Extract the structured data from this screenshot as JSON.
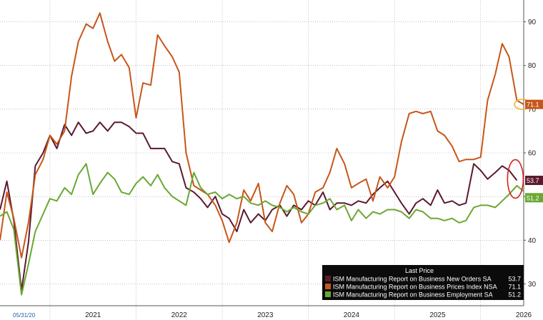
{
  "chart_data": {
    "type": "line",
    "corner_label": "05/31/20",
    "x_ticks": [
      "2021",
      "2022",
      "2023",
      "2024",
      "2025",
      "2026"
    ],
    "y_ticks": [
      30,
      40,
      50,
      60,
      70,
      80,
      90
    ],
    "ylim": [
      25,
      95
    ],
    "xlim": [
      2020.42,
      2026.5
    ],
    "grid": true,
    "legend": {
      "title": "Last Price",
      "placement": "bottom-right"
    },
    "series": [
      {
        "name": "ISM Manufacturing Report on Business New Orders SA",
        "color": "#5c1a2e",
        "last": "53.7",
        "points": [
          [
            2020.42,
            47.0
          ],
          [
            2020.5,
            53.5
          ],
          [
            2020.58,
            44.5
          ],
          [
            2020.67,
            28.5
          ],
          [
            2020.75,
            39.5
          ],
          [
            2020.83,
            57.0
          ],
          [
            2020.92,
            60.0
          ],
          [
            2021.0,
            64.0
          ],
          [
            2021.08,
            61.0
          ],
          [
            2021.17,
            66.5
          ],
          [
            2021.25,
            64.0
          ],
          [
            2021.33,
            67.0
          ],
          [
            2021.42,
            64.5
          ],
          [
            2021.5,
            65.0
          ],
          [
            2021.58,
            67.0
          ],
          [
            2021.67,
            65.0
          ],
          [
            2021.75,
            67.0
          ],
          [
            2021.83,
            67.0
          ],
          [
            2021.92,
            66.0
          ],
          [
            2022.0,
            64.5
          ],
          [
            2022.08,
            64.5
          ],
          [
            2022.17,
            61.0
          ],
          [
            2022.25,
            61.0
          ],
          [
            2022.33,
            61.0
          ],
          [
            2022.42,
            58.0
          ],
          [
            2022.5,
            57.5
          ],
          [
            2022.58,
            52.0
          ],
          [
            2022.67,
            51.0
          ],
          [
            2022.75,
            49.5
          ],
          [
            2022.83,
            47.5
          ],
          [
            2022.92,
            50.0
          ],
          [
            2023.0,
            46.0
          ],
          [
            2023.08,
            45.0
          ],
          [
            2023.17,
            42.0
          ],
          [
            2023.25,
            47.0
          ],
          [
            2023.33,
            44.0
          ],
          [
            2023.42,
            46.0
          ],
          [
            2023.5,
            44.5
          ],
          [
            2023.58,
            47.0
          ],
          [
            2023.67,
            48.0
          ],
          [
            2023.75,
            45.5
          ],
          [
            2023.83,
            48.0
          ],
          [
            2023.92,
            47.0
          ],
          [
            2024.0,
            49.0
          ],
          [
            2024.08,
            48.0
          ],
          [
            2024.17,
            51.0
          ],
          [
            2024.25,
            47.0
          ],
          [
            2024.33,
            48.5
          ],
          [
            2024.42,
            48.5
          ],
          [
            2024.5,
            48.0
          ],
          [
            2024.58,
            49.0
          ],
          [
            2024.67,
            48.5
          ],
          [
            2024.75,
            50.5
          ],
          [
            2024.83,
            52.0
          ],
          [
            2024.92,
            53.5
          ],
          [
            2025.0,
            51.0
          ],
          [
            2025.08,
            48.5
          ],
          [
            2025.17,
            46.0
          ],
          [
            2025.25,
            48.5
          ],
          [
            2025.33,
            49.5
          ],
          [
            2025.42,
            48.0
          ],
          [
            2025.5,
            51.5
          ],
          [
            2025.58,
            48.5
          ],
          [
            2025.67,
            49.0
          ],
          [
            2025.75,
            48.0
          ],
          [
            2025.83,
            48.5
          ],
          [
            2025.92,
            57.5
          ],
          [
            2026.0,
            56.0
          ],
          [
            2026.08,
            54.0
          ],
          [
            2026.17,
            55.5
          ],
          [
            2026.25,
            57.0
          ],
          [
            2026.33,
            56.0
          ],
          [
            2026.42,
            53.7
          ]
        ]
      },
      {
        "name": "ISM Manufacturing Report on Business Prices Index NSA",
        "color": "#c7561a",
        "last": "71.1",
        "points": [
          [
            2020.42,
            40.0
          ],
          [
            2020.5,
            51.0
          ],
          [
            2020.58,
            45.0
          ],
          [
            2020.67,
            36.0
          ],
          [
            2020.75,
            44.0
          ],
          [
            2020.83,
            55.0
          ],
          [
            2020.92,
            58.5
          ],
          [
            2021.0,
            64.0
          ],
          [
            2021.08,
            62.0
          ],
          [
            2021.17,
            65.0
          ],
          [
            2021.25,
            77.5
          ],
          [
            2021.33,
            85.5
          ],
          [
            2021.42,
            89.5
          ],
          [
            2021.5,
            88.5
          ],
          [
            2021.58,
            92.0
          ],
          [
            2021.67,
            85.5
          ],
          [
            2021.75,
            81.0
          ],
          [
            2021.83,
            82.5
          ],
          [
            2021.92,
            79.5
          ],
          [
            2022.0,
            68.0
          ],
          [
            2022.08,
            76.0
          ],
          [
            2022.17,
            75.5
          ],
          [
            2022.25,
            87.0
          ],
          [
            2022.33,
            84.5
          ],
          [
            2022.42,
            82.0
          ],
          [
            2022.5,
            78.5
          ],
          [
            2022.58,
            60.0
          ],
          [
            2022.67,
            52.5
          ],
          [
            2022.75,
            51.5
          ],
          [
            2022.83,
            50.5
          ],
          [
            2022.92,
            48.0
          ],
          [
            2023.0,
            44.5
          ],
          [
            2023.08,
            39.5
          ],
          [
            2023.17,
            44.0
          ],
          [
            2023.25,
            51.5
          ],
          [
            2023.33,
            49.0
          ],
          [
            2023.42,
            53.0
          ],
          [
            2023.5,
            44.0
          ],
          [
            2023.58,
            42.0
          ],
          [
            2023.67,
            48.5
          ],
          [
            2023.75,
            52.5
          ],
          [
            2023.83,
            50.5
          ],
          [
            2023.92,
            44.0
          ],
          [
            2024.0,
            46.0
          ],
          [
            2024.08,
            51.0
          ],
          [
            2024.17,
            52.0
          ],
          [
            2024.25,
            55.5
          ],
          [
            2024.33,
            61.0
          ],
          [
            2024.42,
            57.5
          ],
          [
            2024.5,
            52.0
          ],
          [
            2024.58,
            53.0
          ],
          [
            2024.67,
            54.0
          ],
          [
            2024.75,
            49.0
          ],
          [
            2024.83,
            54.5
          ],
          [
            2024.92,
            52.0
          ],
          [
            2025.0,
            54.5
          ],
          [
            2025.08,
            62.5
          ],
          [
            2025.17,
            69.0
          ],
          [
            2025.25,
            69.5
          ],
          [
            2025.33,
            69.0
          ],
          [
            2025.42,
            69.5
          ],
          [
            2025.5,
            65.0
          ],
          [
            2025.58,
            64.0
          ],
          [
            2025.67,
            61.5
          ],
          [
            2025.75,
            58.0
          ],
          [
            2025.83,
            58.5
          ],
          [
            2025.92,
            58.5
          ],
          [
            2026.0,
            59.0
          ],
          [
            2026.08,
            72.0
          ],
          [
            2026.17,
            78.0
          ],
          [
            2026.25,
            85.0
          ],
          [
            2026.33,
            82.0
          ],
          [
            2026.42,
            72.0
          ],
          [
            2026.5,
            71.1
          ]
        ]
      },
      {
        "name": "ISM Manufacturing Report on Business Employment SA",
        "color": "#6aa832",
        "last": "51.2",
        "points": [
          [
            2020.42,
            45.5
          ],
          [
            2020.5,
            46.5
          ],
          [
            2020.58,
            42.5
          ],
          [
            2020.67,
            27.5
          ],
          [
            2020.75,
            34.5
          ],
          [
            2020.83,
            42.0
          ],
          [
            2020.92,
            46.0
          ],
          [
            2021.0,
            49.5
          ],
          [
            2021.08,
            49.0
          ],
          [
            2021.17,
            52.0
          ],
          [
            2021.25,
            50.5
          ],
          [
            2021.33,
            55.0
          ],
          [
            2021.42,
            57.5
          ],
          [
            2021.5,
            50.5
          ],
          [
            2021.58,
            53.0
          ],
          [
            2021.67,
            55.5
          ],
          [
            2021.75,
            54.0
          ],
          [
            2021.83,
            51.0
          ],
          [
            2021.92,
            50.5
          ],
          [
            2022.0,
            53.0
          ],
          [
            2022.08,
            54.5
          ],
          [
            2022.17,
            52.5
          ],
          [
            2022.25,
            55.0
          ],
          [
            2022.33,
            52.0
          ],
          [
            2022.42,
            50.0
          ],
          [
            2022.5,
            49.0
          ],
          [
            2022.58,
            48.0
          ],
          [
            2022.67,
            55.5
          ],
          [
            2022.75,
            52.0
          ],
          [
            2022.83,
            50.5
          ],
          [
            2022.92,
            51.0
          ],
          [
            2023.0,
            49.5
          ],
          [
            2023.08,
            50.5
          ],
          [
            2023.17,
            49.5
          ],
          [
            2023.25,
            50.0
          ],
          [
            2023.33,
            48.5
          ],
          [
            2023.42,
            48.0
          ],
          [
            2023.5,
            49.0
          ],
          [
            2023.58,
            48.0
          ],
          [
            2023.67,
            47.5
          ],
          [
            2023.75,
            46.5
          ],
          [
            2023.83,
            47.5
          ],
          [
            2023.92,
            46.5
          ],
          [
            2024.0,
            46.0
          ],
          [
            2024.08,
            48.0
          ],
          [
            2024.17,
            48.5
          ],
          [
            2024.25,
            49.5
          ],
          [
            2024.33,
            47.0
          ],
          [
            2024.42,
            48.0
          ],
          [
            2024.5,
            44.5
          ],
          [
            2024.58,
            47.0
          ],
          [
            2024.67,
            45.0
          ],
          [
            2024.75,
            46.5
          ],
          [
            2024.83,
            46.0
          ],
          [
            2024.92,
            47.0
          ],
          [
            2025.0,
            47.0
          ],
          [
            2025.08,
            46.5
          ],
          [
            2025.17,
            45.0
          ],
          [
            2025.25,
            47.0
          ],
          [
            2025.33,
            46.5
          ],
          [
            2025.42,
            45.0
          ],
          [
            2025.5,
            45.0
          ],
          [
            2025.58,
            44.5
          ],
          [
            2025.67,
            45.0
          ],
          [
            2025.75,
            44.0
          ],
          [
            2025.83,
            44.5
          ],
          [
            2025.92,
            47.5
          ],
          [
            2026.0,
            48.0
          ],
          [
            2026.08,
            48.0
          ],
          [
            2026.17,
            47.5
          ],
          [
            2026.25,
            49.0
          ],
          [
            2026.33,
            50.5
          ],
          [
            2026.42,
            52.5
          ],
          [
            2026.5,
            51.2
          ]
        ]
      }
    ],
    "annotations": [
      {
        "type": "circle",
        "color": "#d4241f",
        "target": "New Orders SA latest"
      },
      {
        "type": "circle",
        "color": "#f0b429",
        "target": "Prices Index NSA latest"
      }
    ]
  }
}
